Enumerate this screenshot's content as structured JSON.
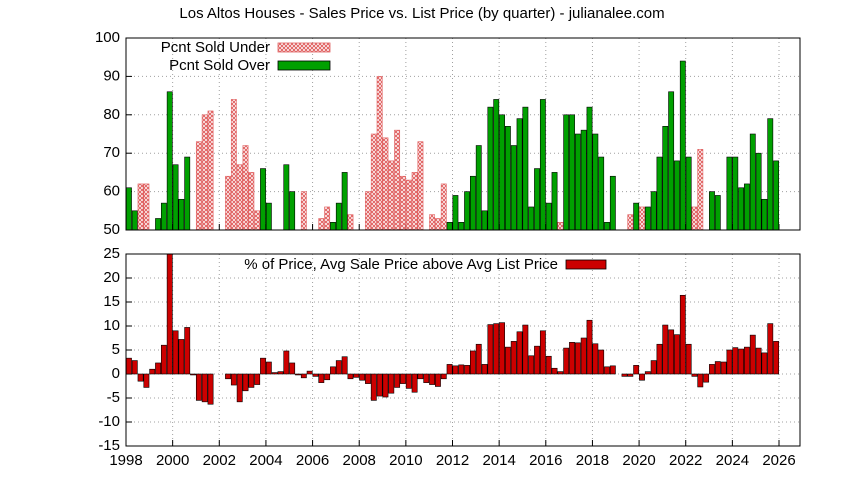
{
  "chart_data": [
    {
      "type": "bar",
      "title": "Los Altos Houses - Sales Price vs. List Price (by quarter) - julianalee.com",
      "x": [
        1998,
        1998.25,
        1998.5,
        1998.75,
        1999,
        1999.25,
        1999.5,
        1999.75,
        2000,
        2000.25,
        2000.5,
        2000.75,
        2001,
        2001.25,
        2001.5,
        2001.75,
        2002,
        2002.25,
        2002.5,
        2002.75,
        2003,
        2003.25,
        2003.5,
        2003.75,
        2004,
        2004.25,
        2004.5,
        2004.75,
        2005,
        2005.25,
        2005.5,
        2005.75,
        2006,
        2006.25,
        2006.5,
        2006.75,
        2007,
        2007.25,
        2007.5,
        2007.75,
        2008,
        2008.25,
        2008.5,
        2008.75,
        2009,
        2009.25,
        2009.5,
        2009.75,
        2010,
        2010.25,
        2010.5,
        2010.75,
        2011,
        2011.25,
        2011.5,
        2011.75,
        2012,
        2012.25,
        2012.5,
        2012.75,
        2013,
        2013.25,
        2013.5,
        2013.75,
        2014,
        2014.25,
        2014.5,
        2014.75,
        2015,
        2015.25,
        2015.5,
        2015.75,
        2016,
        2016.25,
        2016.5,
        2016.75,
        2017,
        2017.25,
        2017.5,
        2017.75,
        2018,
        2018.25,
        2018.5,
        2018.75,
        2019,
        2019.25,
        2019.5,
        2019.75,
        2020,
        2020.25,
        2020.5,
        2020.75,
        2021,
        2021.25,
        2021.5,
        2021.75,
        2022,
        2022.25,
        2022.5,
        2022.75,
        2023,
        2023.25,
        2023.5,
        2023.75,
        2024,
        2024.25,
        2024.5,
        2024.75,
        2025,
        2025.25,
        2025.5,
        2025.75
      ],
      "series": [
        {
          "name": "Pcnt Sold Under",
          "color": "#e06060",
          "pattern": true,
          "values": [
            null,
            null,
            62,
            62,
            null,
            null,
            null,
            null,
            null,
            null,
            null,
            null,
            73,
            80,
            81,
            null,
            null,
            64,
            84,
            67,
            72,
            65,
            55,
            null,
            null,
            null,
            null,
            null,
            null,
            null,
            60,
            null,
            null,
            53,
            56,
            null,
            null,
            null,
            54,
            null,
            null,
            60,
            75,
            90,
            74,
            68,
            76,
            64,
            63,
            65,
            73,
            null,
            54,
            53,
            62,
            null,
            null,
            null,
            null,
            null,
            null,
            null,
            null,
            null,
            null,
            null,
            null,
            null,
            null,
            null,
            null,
            null,
            null,
            null,
            52,
            null,
            null,
            null,
            null,
            null,
            null,
            null,
            null,
            null,
            null,
            null,
            54,
            null,
            56,
            null,
            null,
            null,
            null,
            null,
            null,
            null,
            null,
            56,
            71,
            null,
            null,
            null,
            null,
            null,
            null,
            null,
            null,
            null,
            null,
            null,
            null,
            null
          ]
        },
        {
          "name": "Pcnt Sold Over",
          "color": "#00a000",
          "pattern": false,
          "values": [
            61,
            55,
            null,
            null,
            null,
            53,
            57,
            86,
            67,
            58,
            69,
            null,
            null,
            null,
            null,
            null,
            null,
            null,
            null,
            null,
            null,
            null,
            null,
            66,
            57,
            null,
            null,
            67,
            60,
            null,
            null,
            null,
            null,
            null,
            null,
            52,
            57,
            65,
            null,
            null,
            null,
            null,
            null,
            null,
            null,
            null,
            null,
            null,
            null,
            null,
            null,
            null,
            null,
            null,
            null,
            52,
            59,
            52,
            60,
            64,
            72,
            55,
            82,
            84,
            80,
            77,
            72,
            79,
            82,
            56,
            66,
            84,
            57,
            65,
            null,
            80,
            80,
            75,
            76,
            82,
            75,
            69,
            52,
            64,
            null,
            null,
            null,
            57,
            null,
            56,
            60,
            69,
            77,
            86,
            68,
            94,
            69,
            null,
            null,
            null,
            60,
            59,
            null,
            69,
            69,
            61,
            62,
            75,
            70,
            58,
            79,
            68
          ]
        }
      ],
      "xlim": [
        1998,
        2026.9
      ],
      "xticks": [
        1998,
        2000,
        2002,
        2004,
        2006,
        2008,
        2010,
        2012,
        2014,
        2016,
        2018,
        2020,
        2022,
        2024,
        2026
      ],
      "ylim": [
        50,
        100
      ],
      "yticks": [
        50,
        60,
        70,
        80,
        90,
        100
      ],
      "grid": true
    },
    {
      "type": "bar",
      "x": [
        1998,
        1998.25,
        1998.5,
        1998.75,
        1999,
        1999.25,
        1999.5,
        1999.75,
        2000,
        2000.25,
        2000.5,
        2000.75,
        2001,
        2001.25,
        2001.5,
        2001.75,
        2002,
        2002.25,
        2002.5,
        2002.75,
        2003,
        2003.25,
        2003.5,
        2003.75,
        2004,
        2004.25,
        2004.5,
        2004.75,
        2005,
        2005.25,
        2005.5,
        2005.75,
        2006,
        2006.25,
        2006.5,
        2006.75,
        2007,
        2007.25,
        2007.5,
        2007.75,
        2008,
        2008.25,
        2008.5,
        2008.75,
        2009,
        2009.25,
        2009.5,
        2009.75,
        2010,
        2010.25,
        2010.5,
        2010.75,
        2011,
        2011.25,
        2011.5,
        2011.75,
        2012,
        2012.25,
        2012.5,
        2012.75,
        2013,
        2013.25,
        2013.5,
        2013.75,
        2014,
        2014.25,
        2014.5,
        2014.75,
        2015,
        2015.25,
        2015.5,
        2015.75,
        2016,
        2016.25,
        2016.5,
        2016.75,
        2017,
        2017.25,
        2017.5,
        2017.75,
        2018,
        2018.25,
        2018.5,
        2018.75,
        2019,
        2019.25,
        2019.5,
        2019.75,
        2020,
        2020.25,
        2020.5,
        2020.75,
        2021,
        2021.25,
        2021.5,
        2021.75,
        2022,
        2022.25,
        2022.5,
        2022.75,
        2023,
        2023.25,
        2023.5,
        2023.75,
        2024,
        2024.25,
        2024.5,
        2024.75,
        2025,
        2025.25,
        2025.5,
        2025.75
      ],
      "series": [
        {
          "name": "% of Price, Avg Sale Price above Avg List Price",
          "color": "#cc0000",
          "pattern": false,
          "values": [
            3.3,
            2.8,
            -1.5,
            -2.8,
            1,
            2.3,
            6,
            25,
            9,
            7.2,
            9.7,
            -0.2,
            -5.5,
            -5.8,
            -6.3,
            0,
            0,
            -1,
            -2.3,
            -5.8,
            -3.5,
            -2.8,
            -2.2,
            3.3,
            2.5,
            0.3,
            0.5,
            4.8,
            2.3,
            -0.2,
            -0.8,
            0.6,
            -0.5,
            -1.8,
            -1.2,
            1.5,
            2.8,
            3.6,
            -1,
            -0.7,
            -1.3,
            -2,
            -5.5,
            -4.6,
            -4.8,
            -4,
            -2.8,
            -2,
            -3,
            -3.8,
            -1,
            -1.8,
            -2.2,
            -2.6,
            -1,
            2,
            1.7,
            1.9,
            1.8,
            4.8,
            6.2,
            2,
            10.3,
            10.5,
            10.7,
            5.6,
            6.8,
            8.8,
            10.2,
            3.8,
            5.8,
            9,
            3.7,
            1.2,
            0.5,
            5.4,
            6.6,
            6.5,
            7.5,
            11.2,
            6.3,
            5,
            1.5,
            1.7,
            0,
            -0.5,
            -0.5,
            1.8,
            -1.3,
            0.5,
            2.8,
            6.2,
            10.2,
            9.2,
            8.2,
            16.4,
            6.2,
            -0.5,
            -2.7,
            -1.7,
            2,
            2.6,
            2.5,
            5,
            5.5,
            5.2,
            5.6,
            8.1,
            5.4,
            4.4,
            10.5,
            6.8
          ]
        }
      ],
      "xlim": [
        1998,
        2026.9
      ],
      "xticks": [
        1998,
        2000,
        2002,
        2004,
        2006,
        2008,
        2010,
        2012,
        2014,
        2016,
        2018,
        2020,
        2022,
        2024,
        2026
      ],
      "ylim": [
        -15,
        25
      ],
      "yticks": [
        -15,
        -10,
        -5,
        0,
        5,
        10,
        15,
        20,
        25
      ],
      "grid": true
    }
  ]
}
